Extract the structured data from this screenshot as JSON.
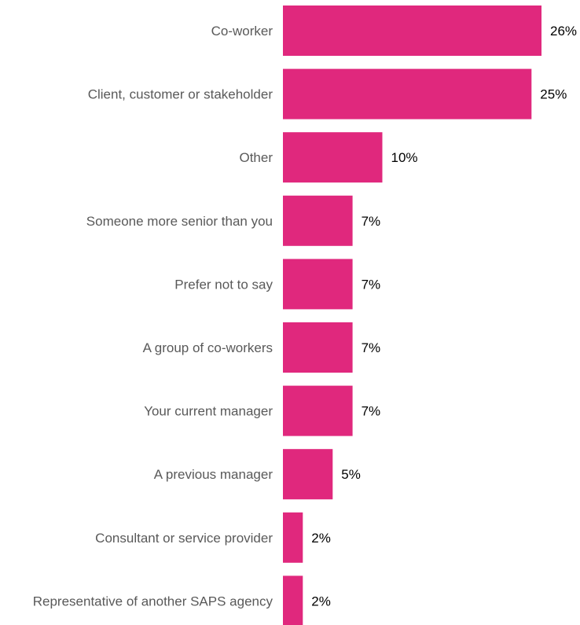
{
  "chart_data": {
    "type": "bar",
    "orientation": "horizontal",
    "categories": [
      "Co-worker",
      "Client, customer or stakeholder",
      "Other",
      "Someone more senior than you",
      "Prefer not to say",
      "A group of co-workers",
      "Your current manager",
      "A previous manager",
      "Consultant or service provider",
      "Representative of another SAPS agency"
    ],
    "values": [
      26,
      25,
      10,
      7,
      7,
      7,
      7,
      5,
      2,
      2
    ],
    "value_labels": [
      "26%",
      "25%",
      "10%",
      "7%",
      "7%",
      "7%",
      "7%",
      "5%",
      "2%",
      "2%"
    ],
    "bar_color": "#E0287D",
    "xlim": [
      0,
      26
    ],
    "grid": false,
    "legend": "none",
    "title": "",
    "xlabel": "",
    "ylabel": ""
  }
}
